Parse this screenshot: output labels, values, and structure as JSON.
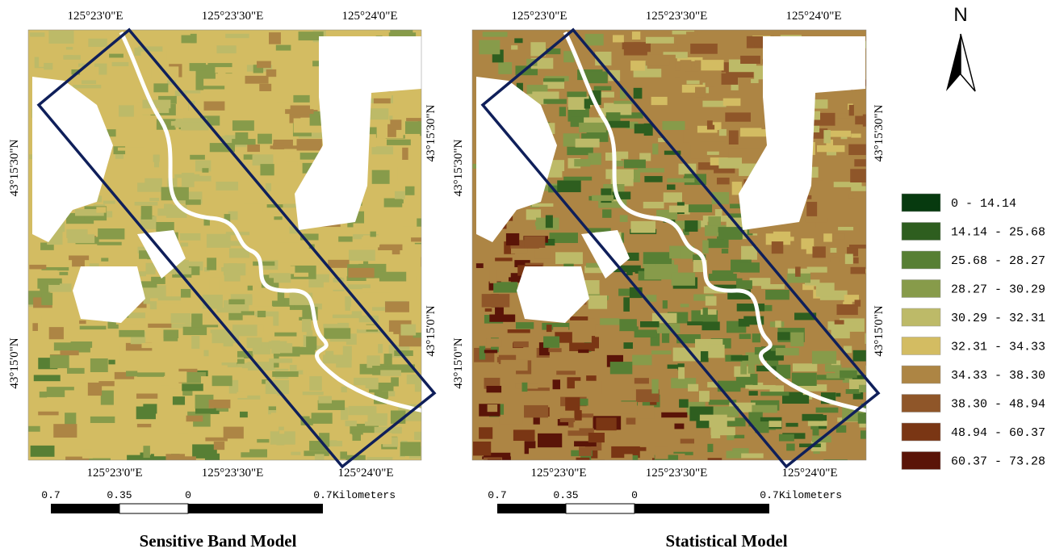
{
  "panels": [
    {
      "title": "Sensitive Band Model",
      "top_labels": [
        "125°23'0\"E",
        "125°23'30\"E",
        "125°24'0\"E"
      ],
      "bottom_labels": [
        "125°23'0\"E",
        "125°23'30\"E",
        "125°24'0\"E"
      ],
      "left_labels": [
        "43°15'30\"N",
        "43°15'0\"N"
      ],
      "right_labels": [
        "43°15'30\"N",
        "43°15'0\"N"
      ],
      "scale": {
        "ticks": [
          "0.7",
          "0.35",
          "0",
          "0.7"
        ],
        "unit": "Kilometers"
      }
    },
    {
      "title": "Statistical Model",
      "top_labels": [
        "125°23'0\"E",
        "125°23'30\"E",
        "125°24'0\"E"
      ],
      "bottom_labels": [
        "125°23'0\"E",
        "125°23'30\"E",
        "125°24'0\"E"
      ],
      "left_labels": [
        "43°15'30\"N",
        "43°15'0\"N"
      ],
      "right_labels": [
        "43°15'30\"N",
        "43°15'0\"N"
      ],
      "scale": {
        "ticks": [
          "0.7",
          "0.35",
          "0",
          "0.7"
        ],
        "unit": "Kilometers"
      }
    }
  ],
  "north": "N",
  "legend": [
    {
      "label": "0 - 14.14",
      "color": "#073a0f"
    },
    {
      "label": "14.14 - 25.68",
      "color": "#2e5e1f"
    },
    {
      "label": "25.68 - 28.27",
      "color": "#577f34"
    },
    {
      "label": "28.27 - 30.29",
      "color": "#879b4a"
    },
    {
      "label": "30.29 - 32.31",
      "color": "#bdba68"
    },
    {
      "label": "32.31 - 34.33",
      "color": "#d3bc62"
    },
    {
      "label": "34.33 - 38.30",
      "color": "#ad8544"
    },
    {
      "label": "38.30 - 48.94",
      "color": "#8f5629"
    },
    {
      "label": "48.94 - 60.37",
      "color": "#7a3614"
    },
    {
      "label": "60.37 - 73.28",
      "color": "#5a1408"
    }
  ]
}
